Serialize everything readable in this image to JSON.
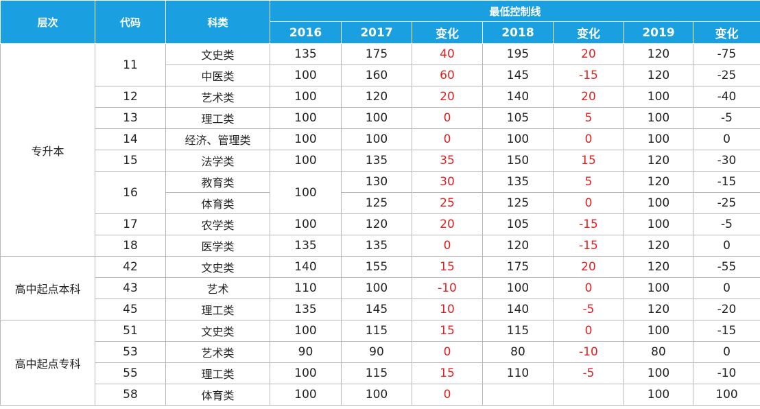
{
  "headers": {
    "level": "层次",
    "code": "代码",
    "category": "科类",
    "group": "最低控制线",
    "y2016": "2016",
    "y2017": "2017",
    "change1": "变化",
    "y2018": "2018",
    "change2": "变化",
    "y2019": "2019",
    "change3": "变化"
  },
  "levels": [
    "专升本",
    "高中起点本科",
    "高中起点专科"
  ],
  "codes": [
    "11",
    "12",
    "13",
    "14",
    "15",
    "16",
    "17",
    "18",
    "42",
    "43",
    "45",
    "51",
    "53",
    "55",
    "58"
  ],
  "rows": [
    {
      "category": "文史类",
      "y2016": "135",
      "y2017": "175",
      "c1": "40",
      "y2018": "195",
      "c2": "20",
      "y2019": "120",
      "c3": "-75"
    },
    {
      "category": "中医类",
      "y2016": "100",
      "y2017": "160",
      "c1": "60",
      "y2018": "145",
      "c2": "-15",
      "y2019": "120",
      "c3": "-25"
    },
    {
      "category": "艺术类",
      "y2016": "100",
      "y2017": "120",
      "c1": "20",
      "y2018": "140",
      "c2": "20",
      "y2019": "100",
      "c3": "-40"
    },
    {
      "category": "理工类",
      "y2016": "100",
      "y2017": "100",
      "c1": "0",
      "y2018": "105",
      "c2": "5",
      "y2019": "100",
      "c3": "-5"
    },
    {
      "category": "经济、管理类",
      "y2016": "100",
      "y2017": "100",
      "c1": "0",
      "y2018": "100",
      "c2": "0",
      "y2019": "100",
      "c3": "0"
    },
    {
      "category": "法学类",
      "y2016": "100",
      "y2017": "135",
      "c1": "35",
      "y2018": "150",
      "c2": "15",
      "y2019": "120",
      "c3": "-30"
    },
    {
      "category": "教育类",
      "y2016": "100",
      "y2017": "130",
      "c1": "30",
      "y2018": "135",
      "c2": "5",
      "y2019": "120",
      "c3": "-15"
    },
    {
      "category": "体育类",
      "y2016": "",
      "y2017": "125",
      "c1": "25",
      "y2018": "125",
      "c2": "0",
      "y2019": "100",
      "c3": "-25"
    },
    {
      "category": "农学类",
      "y2016": "100",
      "y2017": "120",
      "c1": "20",
      "y2018": "105",
      "c2": "-15",
      "y2019": "100",
      "c3": "-5"
    },
    {
      "category": "医学类",
      "y2016": "135",
      "y2017": "135",
      "c1": "0",
      "y2018": "120",
      "c2": "-15",
      "y2019": "120",
      "c3": "0"
    },
    {
      "category": "文史类",
      "y2016": "140",
      "y2017": "155",
      "c1": "15",
      "y2018": "175",
      "c2": "20",
      "y2019": "120",
      "c3": "-55"
    },
    {
      "category": "艺术",
      "y2016": "110",
      "y2017": "100",
      "c1": "-10",
      "y2018": "100",
      "c2": "0",
      "y2019": "100",
      "c3": "0"
    },
    {
      "category": "理工类",
      "y2016": "135",
      "y2017": "145",
      "c1": "10",
      "y2018": "140",
      "c2": "-5",
      "y2019": "120",
      "c3": "-20"
    },
    {
      "category": "文史类",
      "y2016": "100",
      "y2017": "115",
      "c1": "15",
      "y2018": "115",
      "c2": "0",
      "y2019": "100",
      "c3": "-15"
    },
    {
      "category": "艺术类",
      "y2016": "90",
      "y2017": "90",
      "c1": "0",
      "y2018": "80",
      "c2": "-10",
      "y2019": "80",
      "c3": "0"
    },
    {
      "category": "理工类",
      "y2016": "100",
      "y2017": "115",
      "c1": "15",
      "y2018": "110",
      "c2": "-5",
      "y2019": "100",
      "c3": "-10"
    },
    {
      "category": "体育类",
      "y2016": "100",
      "y2017": "100",
      "c1": "0",
      "y2018": "",
      "c2": "",
      "y2019": "100",
      "c3": "100"
    }
  ],
  "colors": {
    "header_bg": "#1a9fe0",
    "header_text": "#ffffff",
    "change_text": "#e02020",
    "body_text": "#222222",
    "border": "#b8b8b8"
  }
}
